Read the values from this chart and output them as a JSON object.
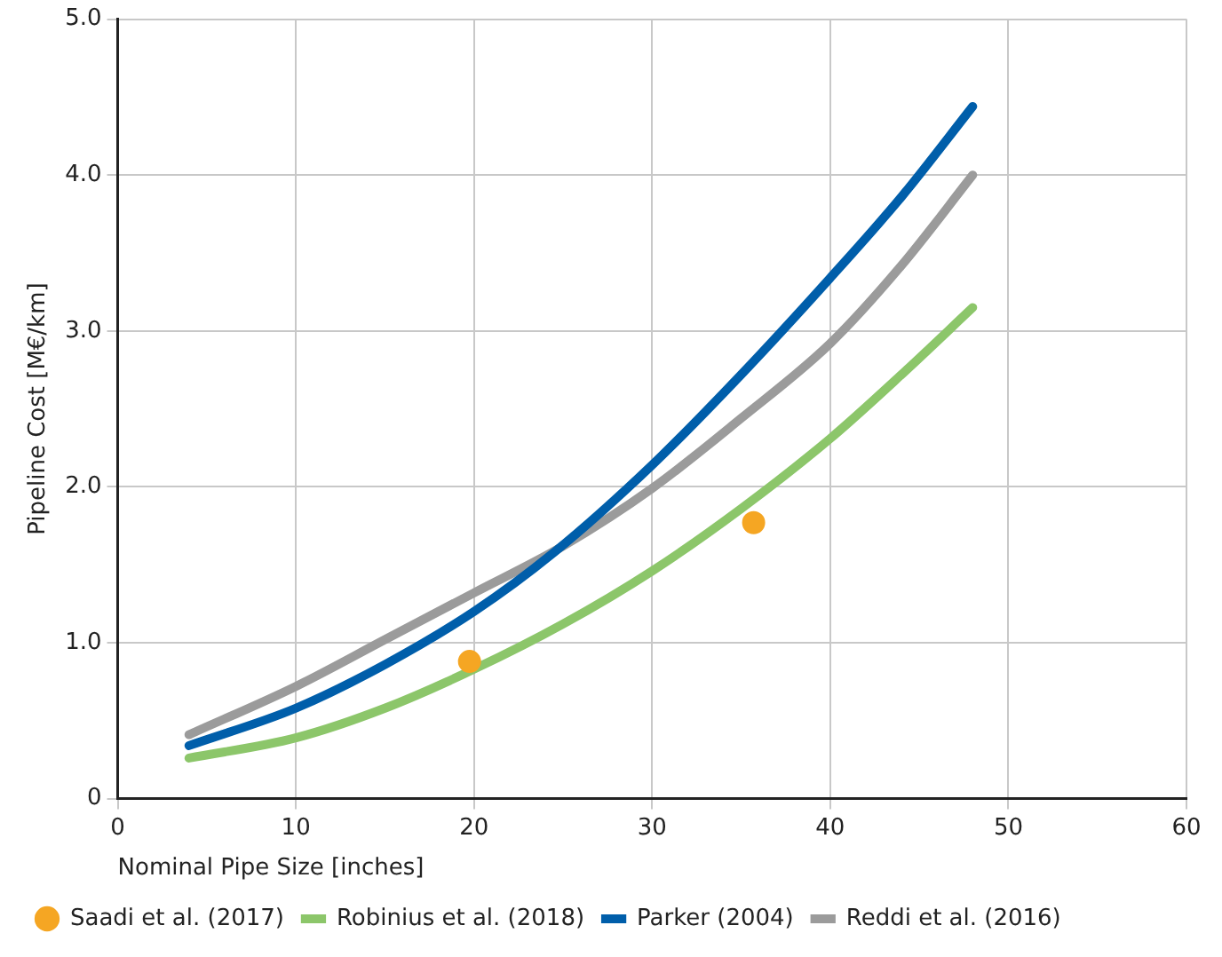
{
  "chart_data": {
    "type": "line",
    "xlabel": "Nominal Pipe Size [inches]",
    "ylabel": "Pipeline Cost [M€/km]",
    "xlim": [
      0,
      60
    ],
    "xticks": [
      0,
      10,
      20,
      30,
      40,
      50,
      60
    ],
    "ylim": [
      0,
      5
    ],
    "yticks": [
      0,
      {
        "value": 1,
        "label": "1.0"
      },
      {
        "value": 2,
        "label": "2.0"
      },
      {
        "value": 3,
        "label": "3.0"
      },
      {
        "value": 4,
        "label": "4.0"
      },
      {
        "value": 5,
        "label": "5.0"
      }
    ],
    "grid": true,
    "legend": "bottom",
    "line_style": "solid",
    "series": [
      {
        "name": "Saadi et al. (2017)",
        "type": "scatter",
        "marker": "circle",
        "color": "#f5a623",
        "x": [
          19.75,
          35.7
        ],
        "values": [
          0.88,
          1.77
        ]
      },
      {
        "name": "Robinius et al. (2018)",
        "color": "#8cc66a",
        "x": [
          4,
          10,
          15,
          20,
          25,
          30,
          35,
          40,
          44,
          48
        ],
        "values": [
          0.26,
          0.39,
          0.58,
          0.83,
          1.12,
          1.46,
          1.86,
          2.31,
          2.72,
          3.15
        ]
      },
      {
        "name": "Parker (2004)",
        "color": "#005eaa",
        "x": [
          4,
          10,
          15,
          20,
          24.5,
          30,
          35,
          40,
          44,
          48
        ],
        "values": [
          0.34,
          0.58,
          0.86,
          1.2,
          1.58,
          2.14,
          2.72,
          3.34,
          3.86,
          4.44
        ]
      },
      {
        "name": "Reddi et al. (2016)",
        "color": "#9b9b9b",
        "x": [
          4,
          10,
          15,
          20,
          25,
          30,
          35,
          40,
          44,
          48
        ],
        "values": [
          0.41,
          0.72,
          1.02,
          1.32,
          1.62,
          1.99,
          2.44,
          2.92,
          3.42,
          4.0
        ]
      }
    ]
  }
}
